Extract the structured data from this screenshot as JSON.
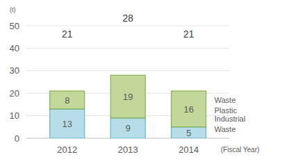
{
  "chart_data": {
    "type": "bar",
    "stacked": true,
    "data_labels": true,
    "grid": true,
    "y_label": "(t)",
    "x_label": "(Fiscal Year)",
    "categories": [
      "2012",
      "2013",
      "2014"
    ],
    "series": [
      {
        "name": "Industrial Waste",
        "color": "#b7dee8",
        "values": [
          13,
          9,
          5
        ]
      },
      {
        "name": "Waste Plastic",
        "color": "#c4d79b",
        "values": [
          8,
          19,
          16
        ]
      }
    ],
    "totals": [
      21,
      28,
      21
    ],
    "ylim": [
      0,
      50
    ],
    "yticks": [
      0,
      10,
      20,
      30,
      40,
      50
    ]
  }
}
